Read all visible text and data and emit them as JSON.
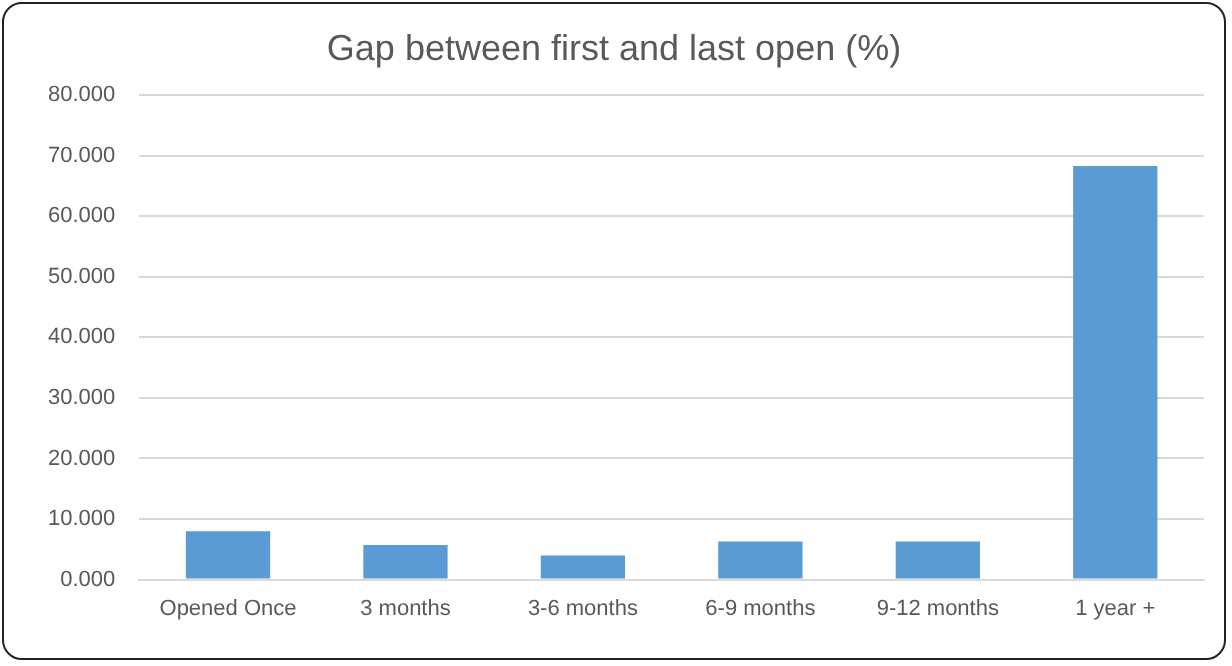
{
  "chart_data": {
    "type": "bar",
    "title": "Gap between first and last open (%)",
    "categories": [
      "Opened Once",
      "3 months",
      "3-6 months",
      "6-9 months",
      "9-12 months",
      "1 year +"
    ],
    "values": [
      8.0,
      5.7,
      4.0,
      6.3,
      6.3,
      68.3
    ],
    "color": "#5b9bd5",
    "ylim": [
      0,
      80
    ],
    "yticks": [
      {
        "value": 0,
        "label": "0.000"
      },
      {
        "value": 10,
        "label": "10.000"
      },
      {
        "value": 20,
        "label": "20.000"
      },
      {
        "value": 30,
        "label": "30.000"
      },
      {
        "value": 40,
        "label": "40.000"
      },
      {
        "value": 50,
        "label": "50.000"
      },
      {
        "value": 60,
        "label": "60.000"
      },
      {
        "value": 70,
        "label": "70.000"
      },
      {
        "value": 80,
        "label": "80.000"
      }
    ],
    "grid": "y"
  }
}
